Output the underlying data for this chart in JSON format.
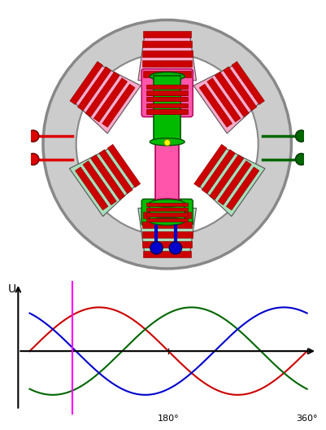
{
  "bg_color": "#ffffff",
  "stator_ring_color": "#cccccc",
  "stator_ring_edge": "#888888",
  "rotor_green": "#00bb00",
  "rotor_green_edge": "#005500",
  "rotor_pink": "#ff55aa",
  "rotor_pink_edge": "#aa0055",
  "rotor_red_stripe": "#cc0000",
  "rotor_red_edge": "#880000",
  "coil_pink_bg": "#ffaacc",
  "coil_green_bg": "#aaddbb",
  "coil_red": "#cc0000",
  "coil_red_edge": "#880000",
  "terminal_red": "#dd0000",
  "terminal_green": "#006600",
  "terminal_blue": "#0000cc",
  "wave_red": "#cc0000",
  "wave_green": "#006600",
  "wave_blue": "#0000cc",
  "wave_magenta": "#ff00ff",
  "yellow_dot": "#ffff00",
  "x_label_180": "180°",
  "x_label_360": "360°",
  "y_label": "U"
}
